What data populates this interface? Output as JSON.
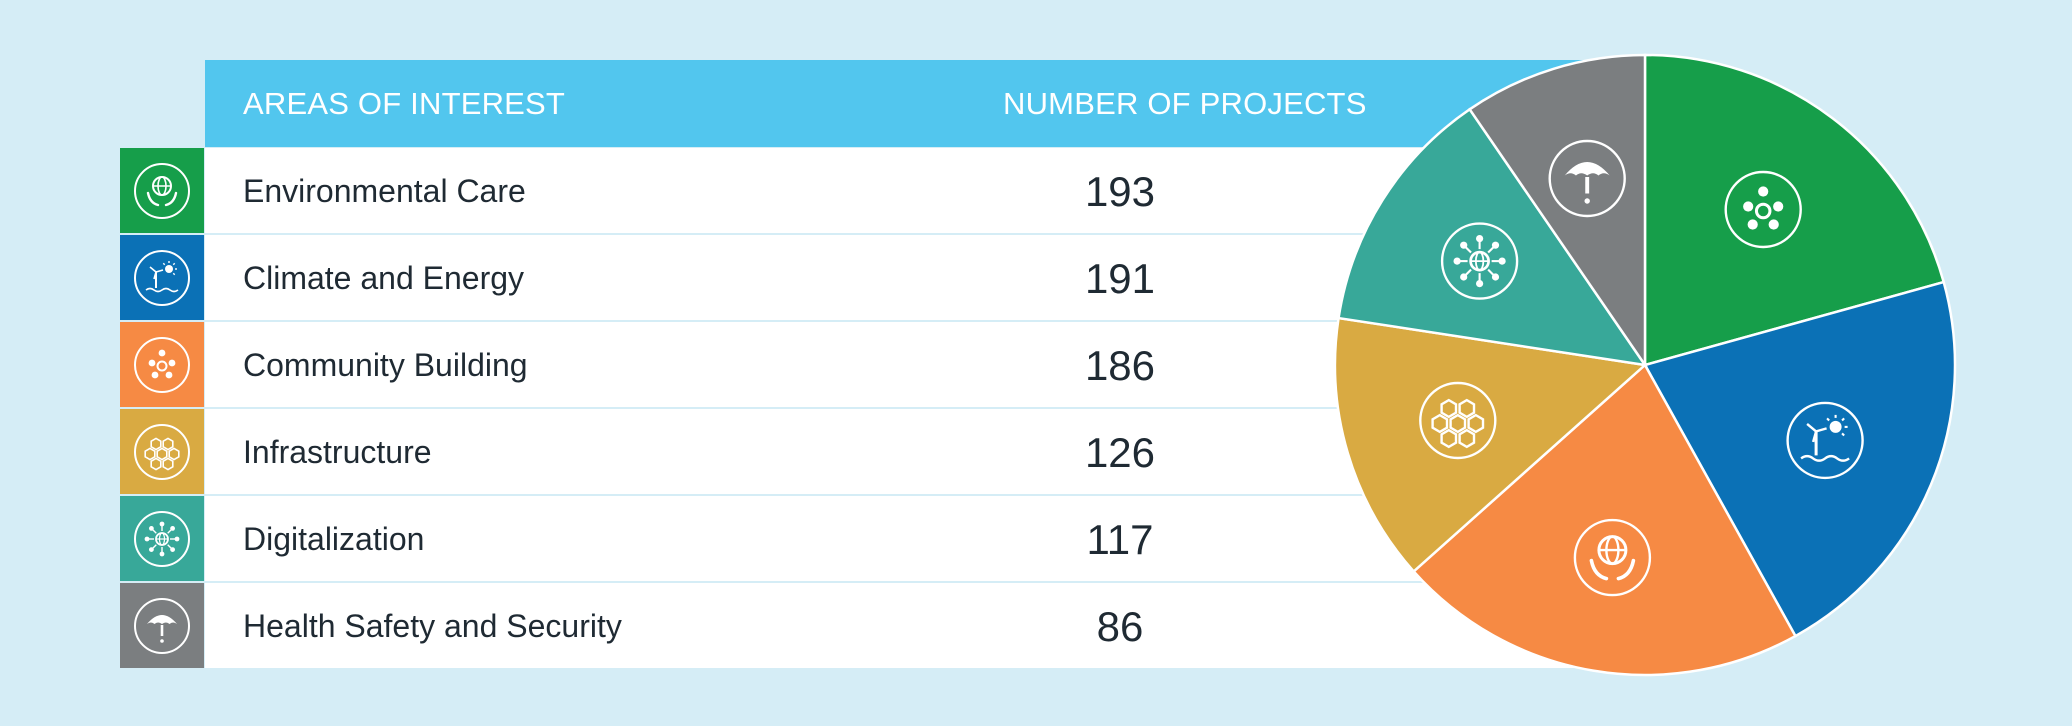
{
  "chart_data": {
    "type": "pie",
    "headers": {
      "area": "AREAS OF INTEREST",
      "count": "NUMBER OF PROJECTS"
    },
    "categories": [
      "Environmental Care",
      "Climate and Energy",
      "Community Building",
      "Infrastructure",
      "Digitalization",
      "Health Safety and Security"
    ],
    "values": [
      193,
      191,
      186,
      126,
      117,
      86
    ],
    "colors": [
      "#169e4a",
      "#0b71b6",
      "#f68a44",
      "#d9aa42",
      "#38a899",
      "#7b7e80"
    ],
    "icons": [
      "globe-in-hands-icon",
      "wind-turbine-sun-icon",
      "community-people-icon",
      "hexagon-cells-icon",
      "network-globe-icon",
      "umbrella-icon"
    ],
    "pie_slices": [
      {
        "color": "#169e4a",
        "icon": "community-people-icon"
      },
      {
        "color": "#0b71b6",
        "icon": "wind-turbine-sun-icon"
      },
      {
        "color": "#f68a44",
        "icon": "globe-in-hands-icon"
      },
      {
        "color": "#d9aa42",
        "icon": "hexagon-cells-icon"
      },
      {
        "color": "#38a899",
        "icon": "network-globe-icon"
      },
      {
        "color": "#7b7e80",
        "icon": "umbrella-icon"
      }
    ]
  }
}
